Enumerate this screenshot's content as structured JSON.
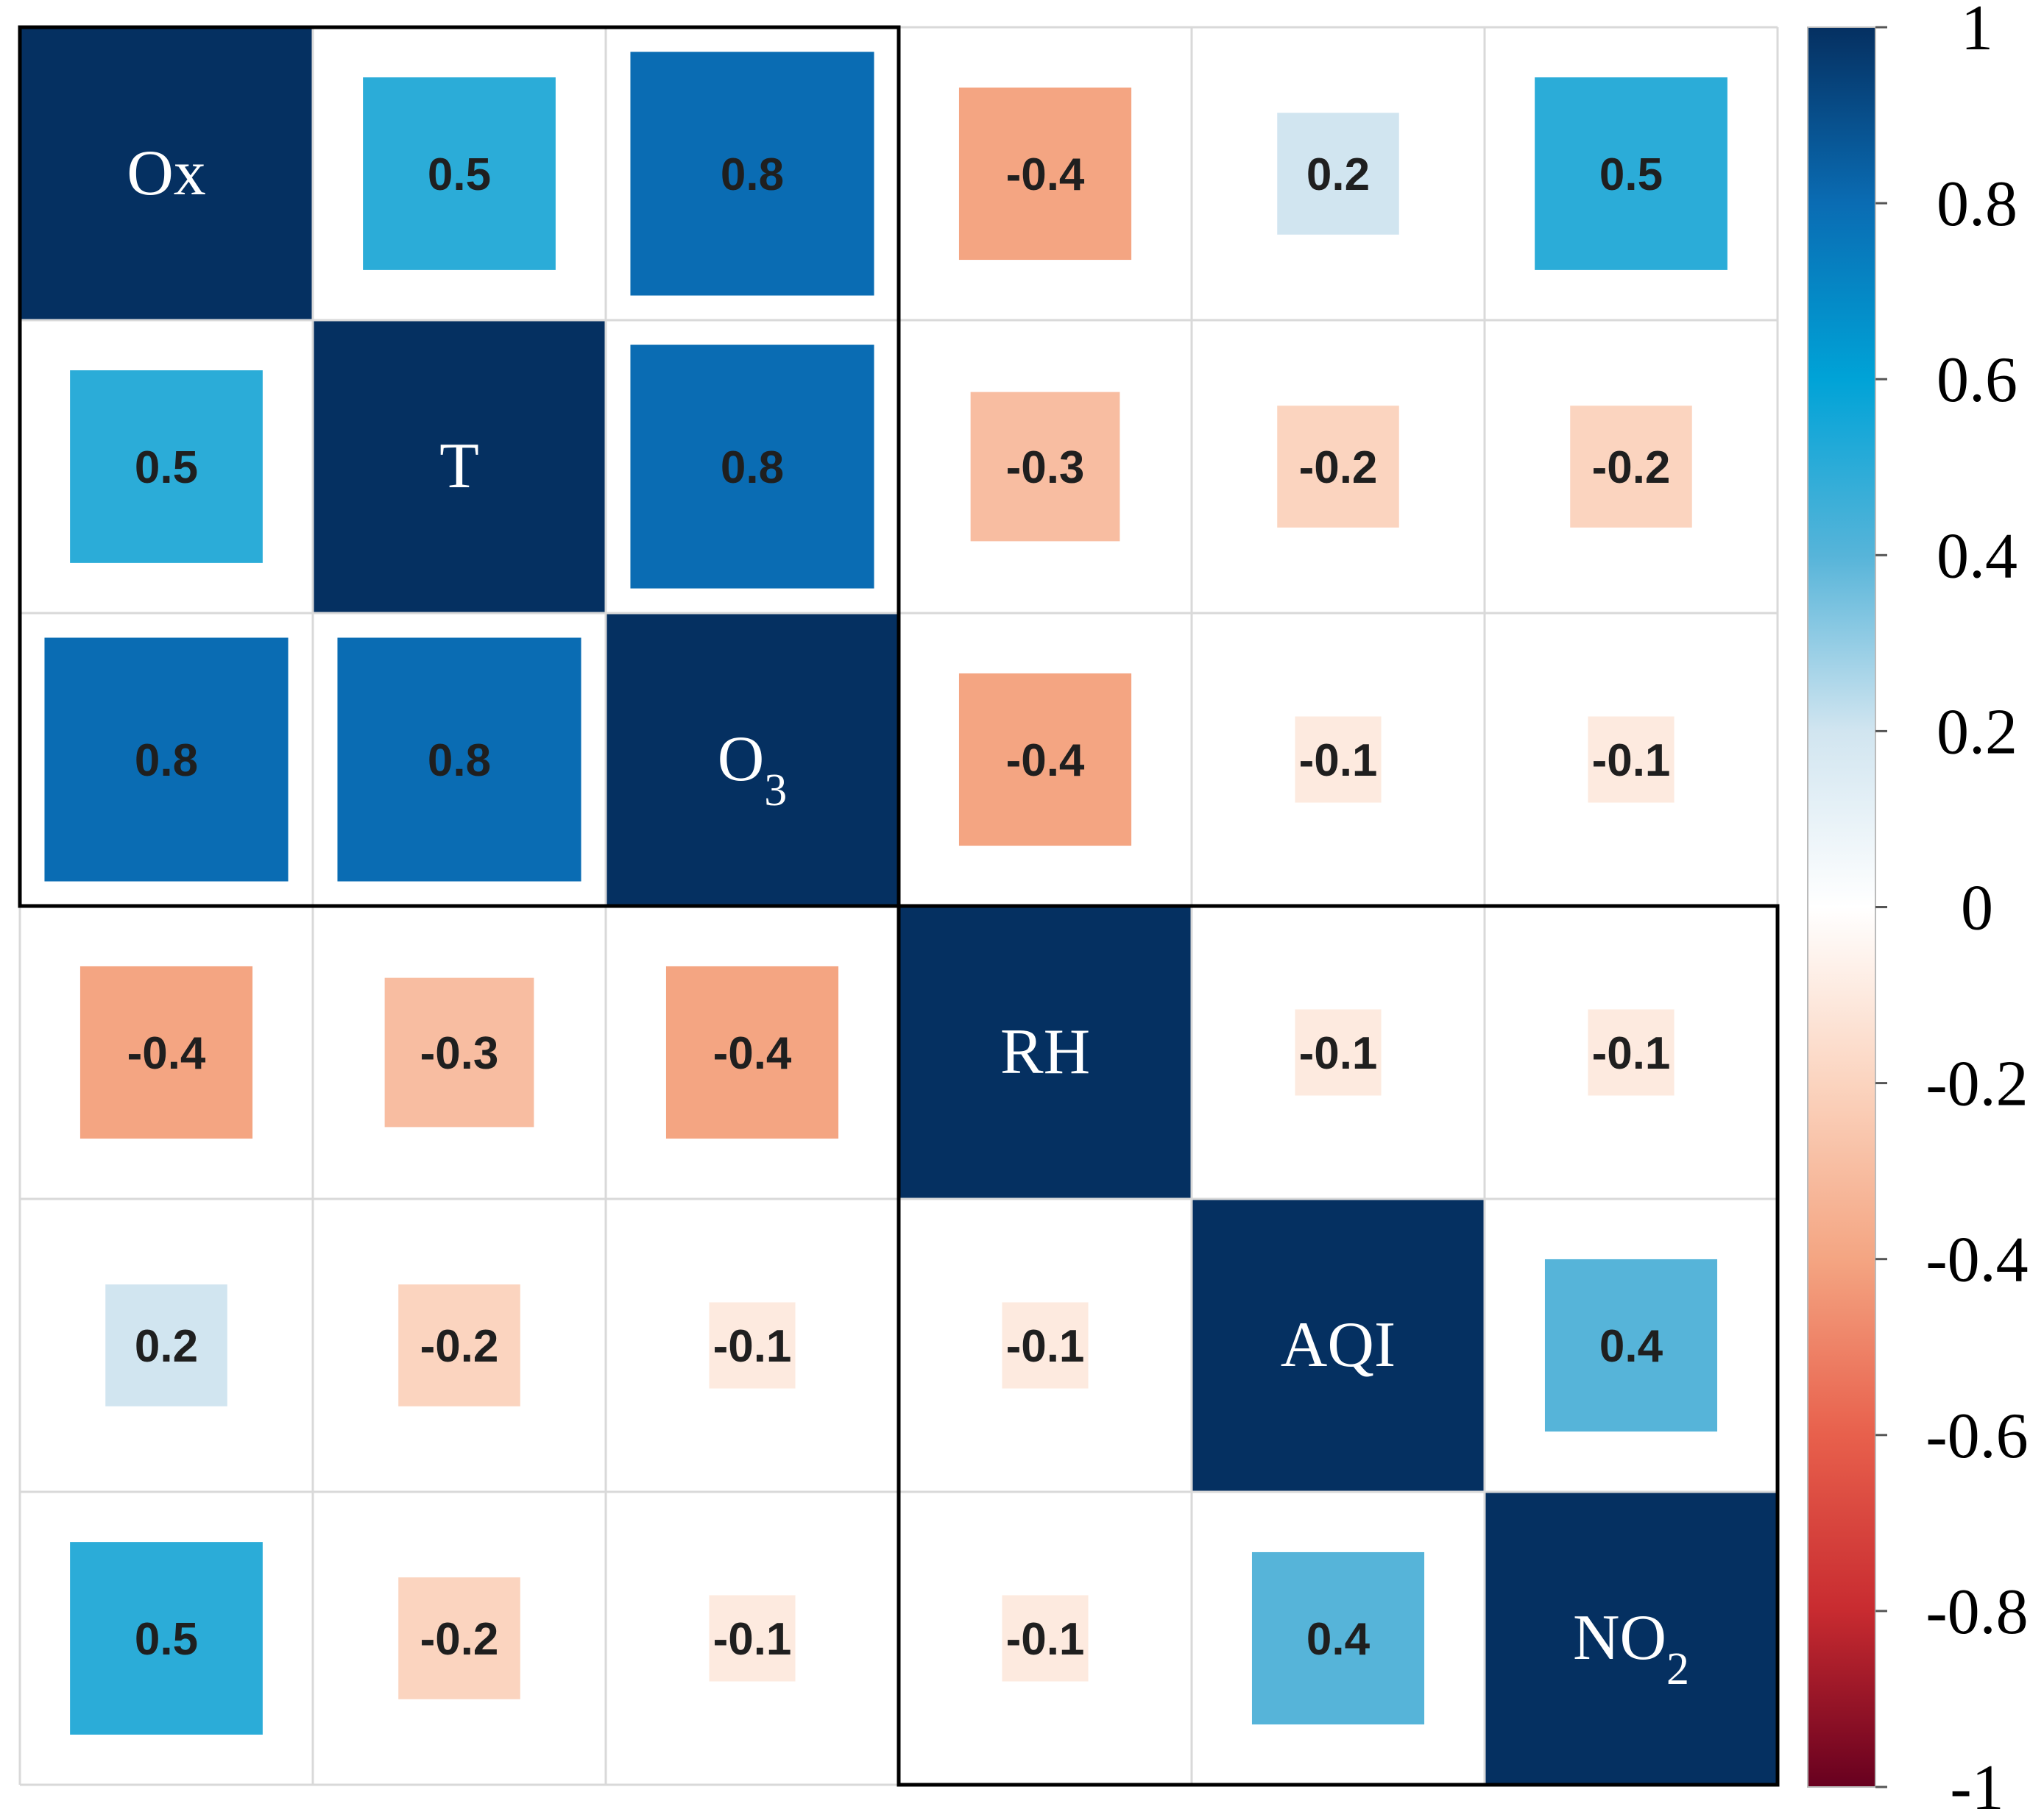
{
  "chart_data": {
    "type": "heatmap",
    "variables": [
      {
        "name": "Ox",
        "base": "Ox",
        "sub": ""
      },
      {
        "name": "T",
        "base": "T",
        "sub": ""
      },
      {
        "name": "O3",
        "base": "O",
        "sub": "3"
      },
      {
        "name": "RH",
        "base": "RH",
        "sub": ""
      },
      {
        "name": "AQI",
        "base": "AQI",
        "sub": ""
      },
      {
        "name": "NO2",
        "base": "NO",
        "sub": "2"
      }
    ],
    "matrix": [
      [
        1,
        0.5,
        0.8,
        -0.4,
        0.2,
        0.5
      ],
      [
        0.5,
        1,
        0.8,
        -0.3,
        -0.2,
        -0.2
      ],
      [
        0.8,
        0.8,
        1,
        -0.4,
        -0.1,
        -0.1
      ],
      [
        -0.4,
        -0.3,
        -0.4,
        1,
        -0.1,
        -0.1
      ],
      [
        0.2,
        -0.2,
        -0.1,
        -0.1,
        1,
        0.4
      ],
      [
        0.5,
        -0.2,
        -0.1,
        -0.1,
        0.4,
        1
      ]
    ],
    "cell_labels": [
      [
        "Ox",
        "0.5",
        "0.8",
        "-0.4",
        "0.2",
        "0.5"
      ],
      [
        "0.5",
        "T",
        "0.8",
        "-0.3",
        "-0.2",
        "-0.2"
      ],
      [
        "0.8",
        "0.8",
        "O3",
        "-0.4",
        "-0.1",
        "-0.1"
      ],
      [
        "-0.4",
        "-0.3",
        "-0.4",
        "RH",
        "-0.1",
        "-0.1"
      ],
      [
        "0.2",
        "-0.2",
        "-0.1",
        "-0.1",
        "AQI",
        "0.4"
      ],
      [
        "0.5",
        "-0.2",
        "-0.1",
        "-0.1",
        "0.4",
        "NO2"
      ]
    ],
    "clusters": [
      {
        "start": 0,
        "end": 2
      },
      {
        "start": 3,
        "end": 5
      }
    ],
    "colorbar": {
      "range": [
        -1,
        1
      ],
      "ticks": [
        1,
        0.8,
        0.6,
        0.4,
        0.2,
        0,
        -0.2,
        -0.4,
        -0.6,
        -0.8,
        -1
      ],
      "tick_labels": [
        "1",
        "0.8",
        "0.6",
        "0.4",
        "0.2",
        "0",
        "-0.2",
        "-0.4",
        "-0.6",
        "-0.8",
        "-1"
      ],
      "colors": {
        "-1": "#67001f",
        "-0.8": "#c82b30",
        "-0.6": "#e8604c",
        "-0.4": "#f4a582",
        "-0.2": "#fbd4bf",
        "0": "#ffffff",
        "0.2": "#d1e5f0",
        "0.4": "#56b4d9",
        "0.6": "#00a3d7",
        "0.8": "#0a6cb3",
        "1": "#053061"
      }
    },
    "grid": true,
    "title": "",
    "xlabel": "",
    "ylabel": ""
  }
}
